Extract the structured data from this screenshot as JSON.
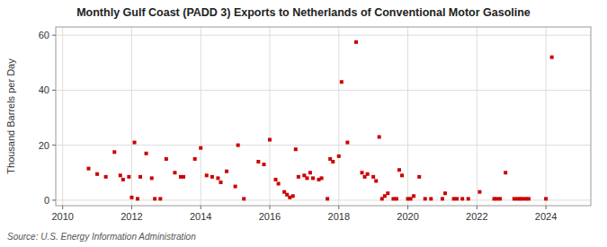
{
  "chart_data": {
    "type": "scatter",
    "title": "Monthly Gulf Coast (PADD 3) Exports to Netherlands of Conventional Motor Gasoline",
    "ylabel": "Thousand Barrels per Day",
    "source": "Source: U.S. Energy Information Administration",
    "color": "#cc0000",
    "marker": "square",
    "grid": true,
    "xlim": [
      2009.8,
      2025.3
    ],
    "ylim": [
      -2,
      63
    ],
    "xticks": [
      2010,
      2012,
      2014,
      2016,
      2018,
      2020,
      2022,
      2024
    ],
    "yticks": [
      0,
      20,
      40,
      60
    ],
    "x": [
      2010.75,
      2011.0,
      2011.25,
      2011.5,
      2011.67,
      2011.75,
      2011.92,
      2012.0,
      2012.08,
      2012.17,
      2012.25,
      2012.42,
      2012.58,
      2012.67,
      2012.83,
      2013.0,
      2013.25,
      2013.42,
      2013.5,
      2013.83,
      2014.0,
      2014.17,
      2014.33,
      2014.5,
      2014.58,
      2014.75,
      2015.0,
      2015.08,
      2015.25,
      2015.67,
      2015.83,
      2016.0,
      2016.17,
      2016.25,
      2016.42,
      2016.5,
      2016.58,
      2016.67,
      2016.75,
      2016.83,
      2017.0,
      2017.08,
      2017.17,
      2017.25,
      2017.42,
      2017.5,
      2017.67,
      2017.75,
      2017.83,
      2018.0,
      2018.08,
      2018.25,
      2018.5,
      2018.67,
      2018.75,
      2018.83,
      2019.0,
      2019.08,
      2019.17,
      2019.25,
      2019.33,
      2019.42,
      2019.58,
      2019.67,
      2019.75,
      2019.83,
      2020.0,
      2020.08,
      2020.17,
      2020.33,
      2020.5,
      2020.67,
      2021.0,
      2021.08,
      2021.33,
      2021.42,
      2021.58,
      2021.75,
      2022.08,
      2022.5,
      2022.58,
      2022.67,
      2022.83,
      2023.08,
      2023.17,
      2023.25,
      2023.33,
      2023.42,
      2023.5,
      2024.0,
      2024.17
    ],
    "values": [
      11.5,
      9.5,
      8.5,
      17.5,
      9.0,
      7.5,
      8.5,
      1.0,
      21.0,
      0.5,
      8.5,
      17.0,
      8.0,
      0.5,
      0.5,
      15.0,
      10.0,
      8.5,
      8.5,
      15.0,
      19.0,
      9.0,
      8.5,
      8.0,
      6.5,
      10.5,
      5.0,
      20.0,
      0.5,
      14.0,
      13.0,
      22.0,
      7.5,
      6.0,
      3.0,
      2.0,
      1.0,
      1.5,
      18.5,
      8.5,
      9.0,
      8.0,
      10.0,
      8.0,
      7.5,
      8.0,
      0.5,
      15.0,
      14.0,
      16.0,
      43.0,
      21.0,
      57.5,
      10.0,
      8.5,
      9.5,
      8.5,
      7.0,
      23.0,
      0.5,
      1.5,
      2.5,
      0.5,
      0.5,
      11.0,
      9.0,
      0.5,
      0.5,
      1.5,
      8.5,
      0.5,
      0.5,
      0.5,
      2.5,
      0.5,
      0.5,
      0.5,
      0.5,
      3.0,
      0.5,
      0.5,
      0.5,
      10.0,
      0.5,
      0.5,
      0.5,
      0.5,
      0.5,
      0.5,
      0.5,
      52.0
    ]
  }
}
